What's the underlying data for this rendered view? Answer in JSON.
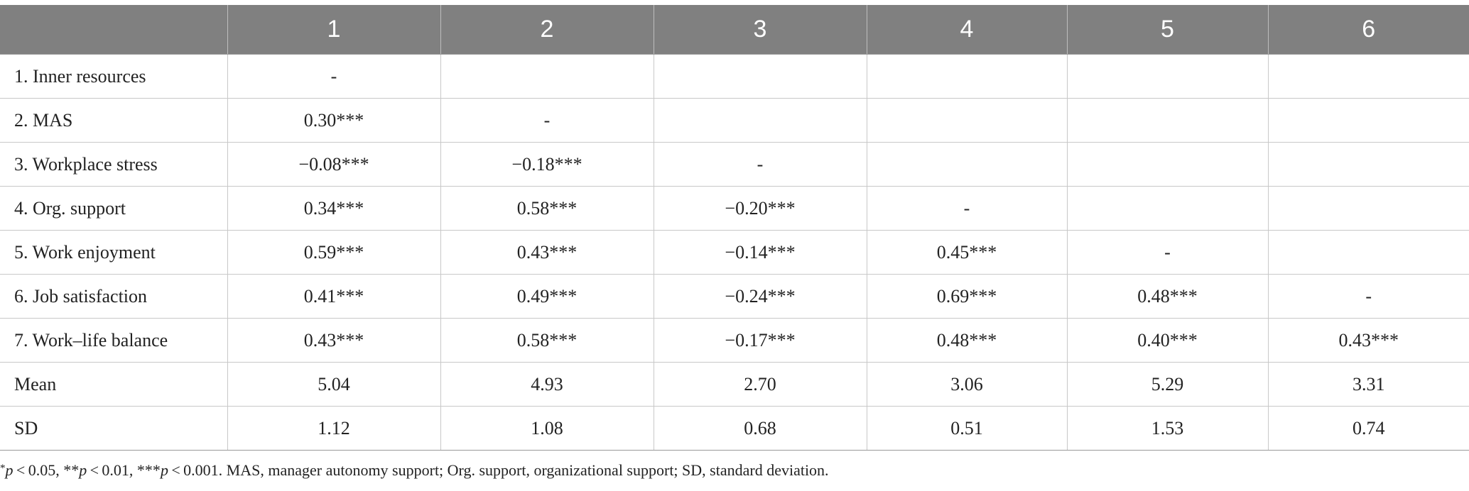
{
  "chart_data": {
    "type": "table",
    "columns": [
      "",
      "1",
      "2",
      "3",
      "4",
      "5",
      "6"
    ],
    "rows": [
      {
        "label": "1. Inner resources",
        "cells": [
          "-",
          "",
          "",
          "",
          "",
          ""
        ]
      },
      {
        "label": "2. MAS",
        "cells": [
          "0.30***",
          "-",
          "",
          "",
          "",
          ""
        ]
      },
      {
        "label": "3. Workplace stress",
        "cells": [
          "−0.08***",
          "−0.18***",
          "-",
          "",
          "",
          ""
        ]
      },
      {
        "label": "4. Org. support",
        "cells": [
          "0.34***",
          "0.58***",
          "−0.20***",
          "-",
          "",
          ""
        ]
      },
      {
        "label": "5. Work enjoyment",
        "cells": [
          "0.59***",
          "0.43***",
          "−0.14***",
          "0.45***",
          "-",
          ""
        ]
      },
      {
        "label": "6. Job satisfaction",
        "cells": [
          "0.41***",
          "0.49***",
          "−0.24***",
          "0.69***",
          "0.48***",
          "-"
        ]
      },
      {
        "label": "7. Work–life balance",
        "cells": [
          "0.43***",
          "0.58***",
          "−0.17***",
          "0.48***",
          "0.40***",
          "0.43***"
        ]
      },
      {
        "label": "Mean",
        "cells": [
          "5.04",
          "4.93",
          "2.70",
          "3.06",
          "5.29",
          "3.31"
        ]
      },
      {
        "label": "SD",
        "cells": [
          "1.12",
          "1.08",
          "0.68",
          "0.51",
          "1.53",
          "0.74"
        ]
      }
    ],
    "footnote": {
      "p1_star": "*",
      "p1_var": "p",
      "p1_text": " < 0.05, **",
      "p2_var": "p",
      "p2_text": " < 0.01, ***",
      "p3_var": "p",
      "p3_text": " < 0.001. MAS, manager autonomy support; Org. support, organizational support; SD, standard deviation."
    }
  },
  "colors": {
    "header_bg": "#808080",
    "header_text": "#ffffff",
    "grid": "#c8c8c8"
  }
}
